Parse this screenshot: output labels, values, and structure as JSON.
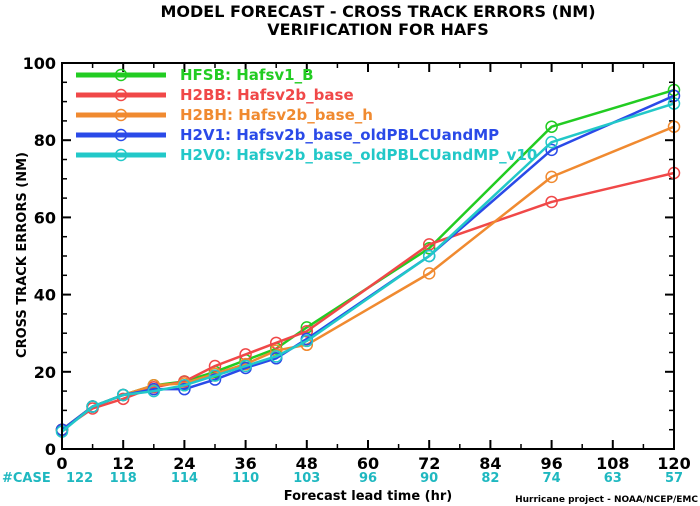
{
  "chart_data": {
    "type": "line",
    "title": "MODEL FORECAST - CROSS TRACK ERRORS (NM)",
    "subtitle": "VERIFICATION FOR HAFS",
    "xlabel": "Forecast lead time (hr)",
    "ylabel": "CROSS TRACK ERRORS (NM)",
    "xlim": [
      0,
      120
    ],
    "ylim": [
      0,
      100
    ],
    "x_ticks": [
      0,
      12,
      24,
      36,
      48,
      60,
      72,
      84,
      96,
      108,
      120
    ],
    "y_ticks": [
      0,
      20,
      40,
      60,
      80,
      100
    ],
    "grid": false,
    "legend_position": "top-left",
    "case_label": "#CASE",
    "case_x": [
      0,
      12,
      24,
      36,
      48,
      60,
      72,
      84,
      96,
      108,
      120
    ],
    "case_counts": [
      "122",
      "118",
      "114",
      "110",
      "103",
      "96",
      "90",
      "82",
      "74",
      "63",
      "57"
    ],
    "credit": "Hurricane project - NOAA/NCEP/EMC",
    "series": [
      {
        "name": "HFSB: Hafsv1_B",
        "color": "#22cc22",
        "x": [
          0,
          6,
          12,
          18,
          24,
          30,
          36,
          42,
          48,
          72,
          96,
          120
        ],
        "y": [
          5.0,
          11.0,
          14.0,
          16.5,
          17.5,
          20.0,
          23.0,
          26.0,
          31.5,
          52.0,
          83.5,
          93.0
        ]
      },
      {
        "name": "H2BB: Hafsv2b_base",
        "color": "#f04848",
        "x": [
          0,
          6,
          12,
          18,
          24,
          30,
          36,
          42,
          48,
          72,
          96,
          120
        ],
        "y": [
          5.0,
          10.5,
          13.0,
          16.0,
          17.5,
          21.5,
          24.5,
          27.5,
          30.5,
          53.0,
          64.0,
          71.5
        ]
      },
      {
        "name": "H2BH: Hafsv2b_base_h",
        "color": "#f08a30",
        "x": [
          0,
          6,
          12,
          18,
          24,
          30,
          36,
          42,
          48,
          72,
          96,
          120
        ],
        "y": [
          5.0,
          11.0,
          14.0,
          16.5,
          17.0,
          19.5,
          22.0,
          25.5,
          27.0,
          45.5,
          70.5,
          83.5
        ]
      },
      {
        "name": "H2V1: Hafsv2b_base_oldPBLCUandMP",
        "color": "#2a4ae8",
        "x": [
          0,
          6,
          12,
          18,
          24,
          30,
          36,
          42,
          48,
          72,
          96,
          120
        ],
        "y": [
          5.0,
          11.0,
          14.0,
          15.5,
          15.5,
          18.0,
          21.0,
          23.5,
          28.5,
          50.0,
          77.5,
          91.5
        ]
      },
      {
        "name": "H2V0: Hafsv2b_base_oldPBLCUandMP_v10",
        "color": "#22c8c8",
        "x": [
          0,
          6,
          12,
          18,
          24,
          30,
          36,
          42,
          48,
          72,
          96,
          120
        ],
        "y": [
          4.5,
          11.0,
          14.0,
          15.0,
          16.5,
          19.0,
          21.5,
          24.0,
          28.0,
          50.0,
          79.5,
          89.5
        ]
      }
    ]
  }
}
